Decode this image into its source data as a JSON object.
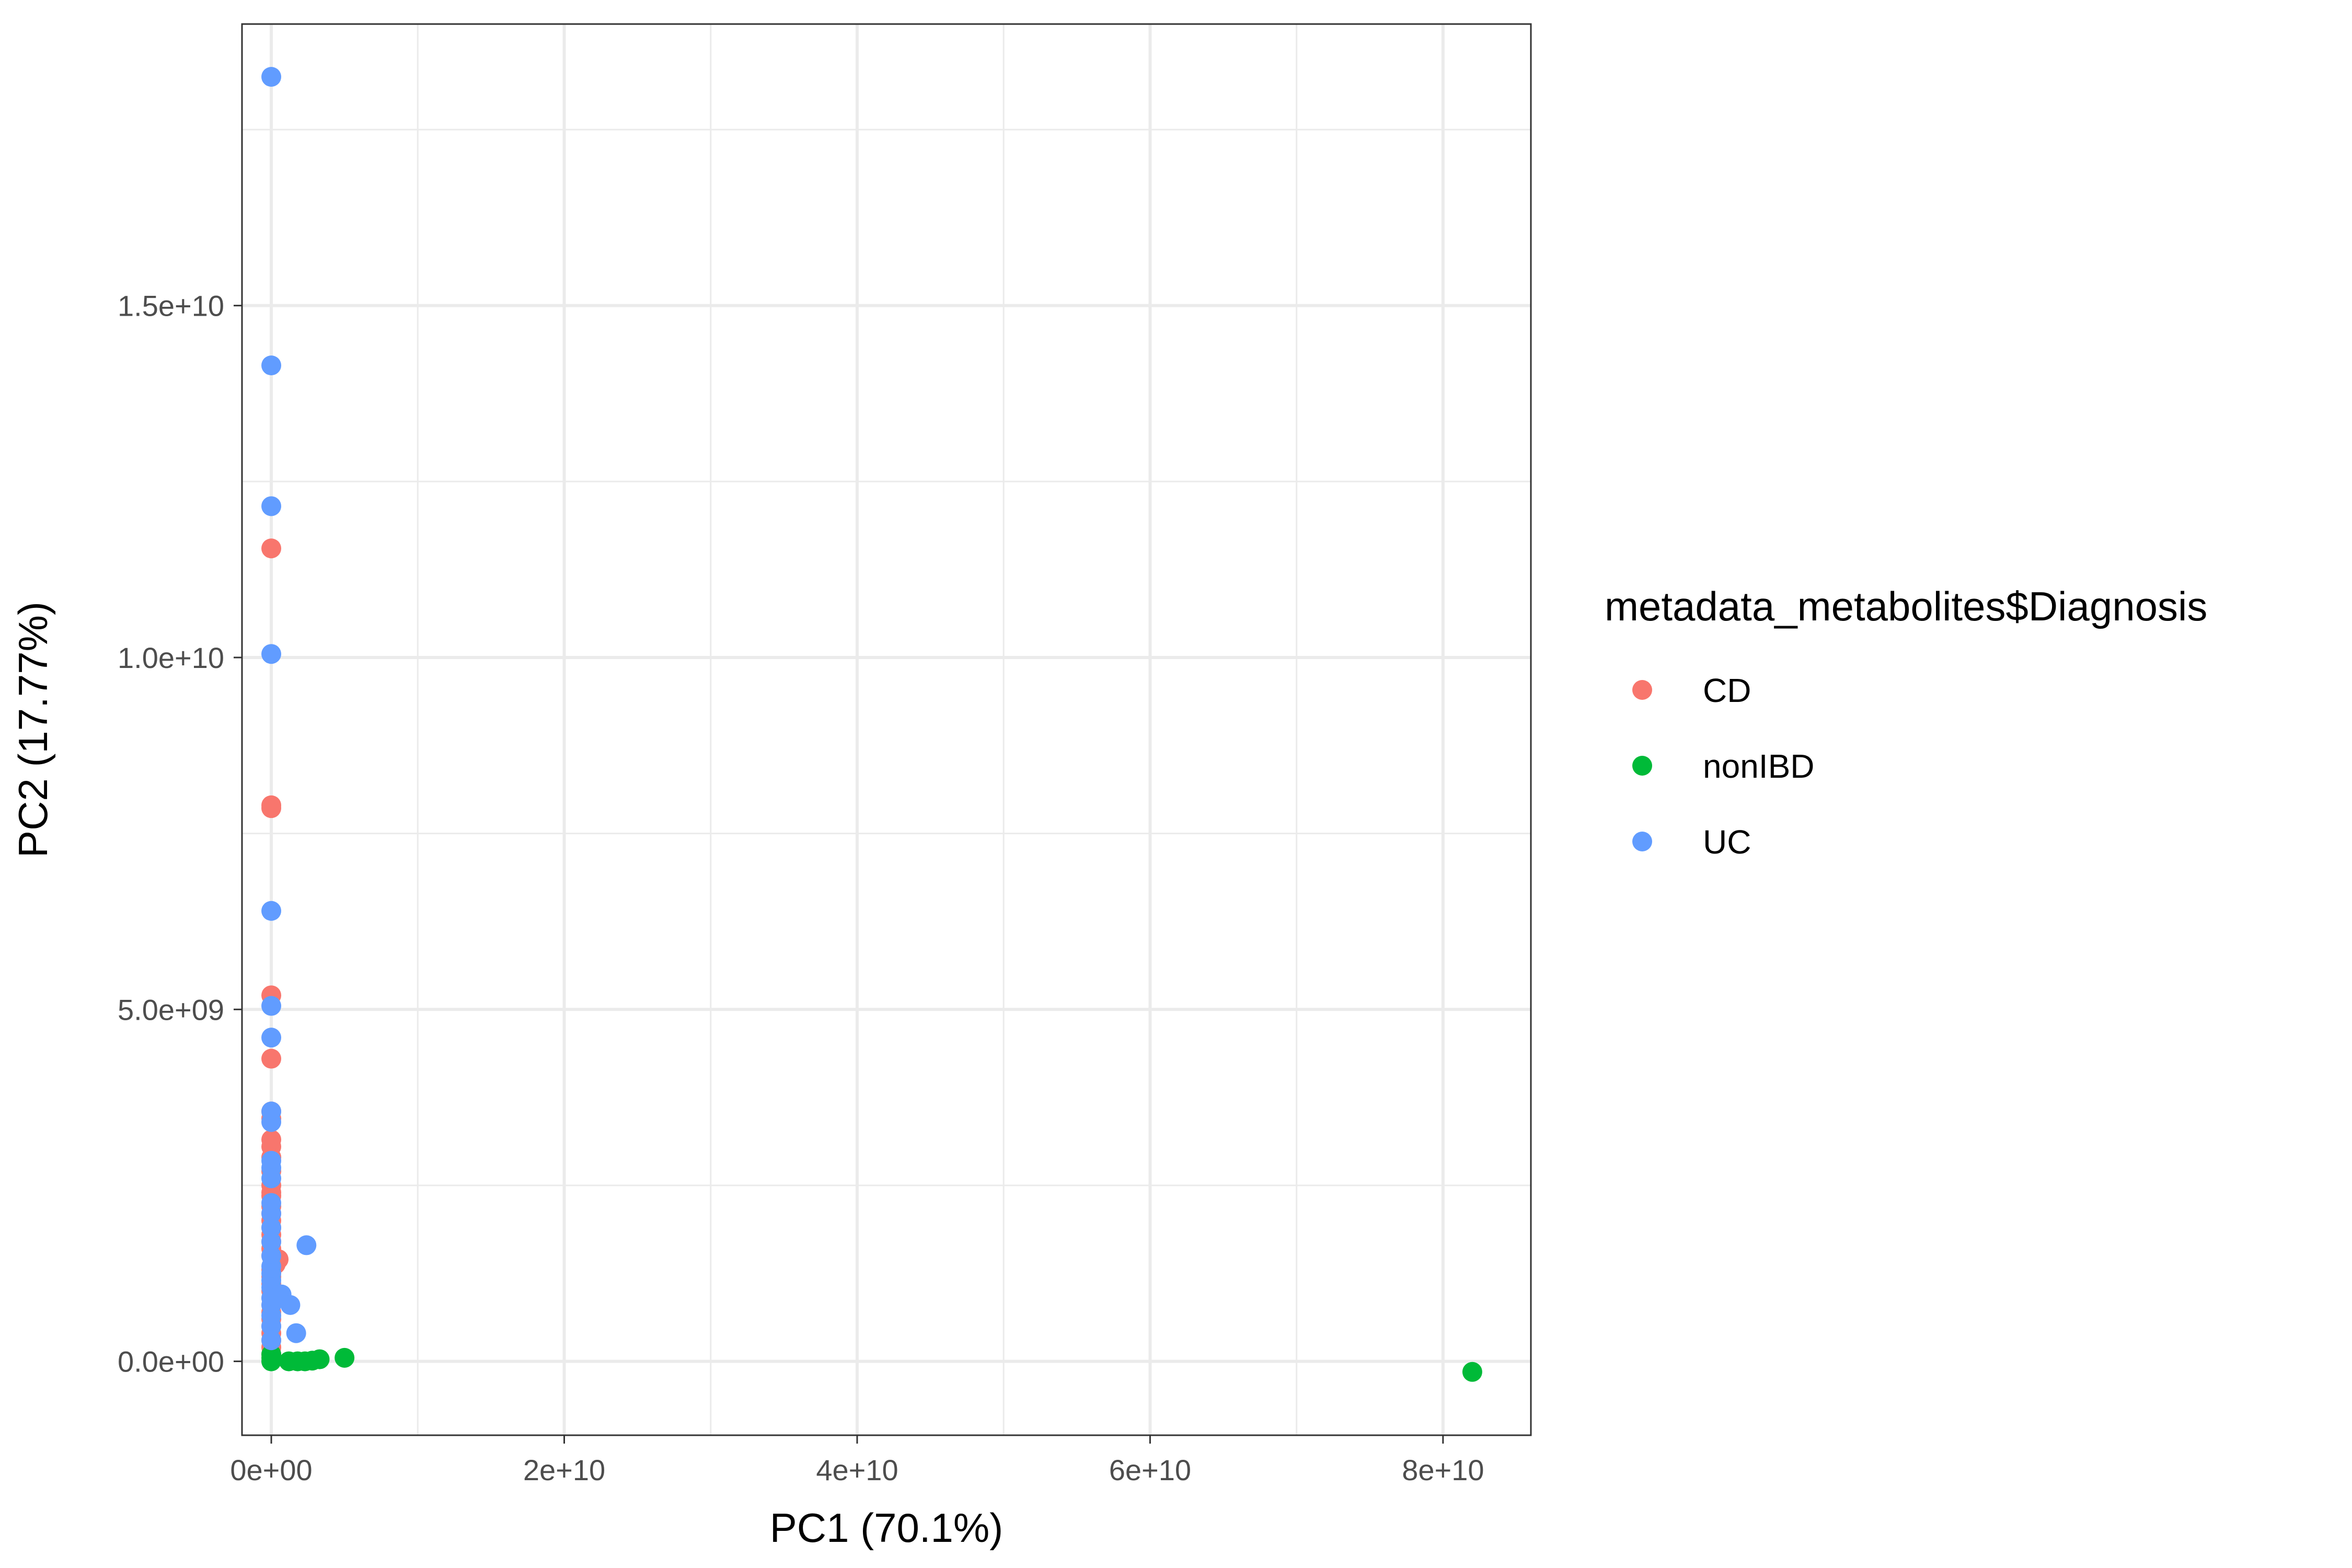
{
  "chart_data": {
    "type": "scatter",
    "title": "",
    "xlabel": "PC1 (70.1%)",
    "ylabel": "PC2 (17.77%)",
    "xlim": [
      -2000000000,
      86000000000
    ],
    "ylim": [
      -1050000000,
      19000000000
    ],
    "x_ticks": [
      {
        "value": 0,
        "label": "0e+00"
      },
      {
        "value": 20000000000,
        "label": "2e+10"
      },
      {
        "value": 40000000000,
        "label": "4e+10"
      },
      {
        "value": 60000000000,
        "label": "6e+10"
      },
      {
        "value": 80000000000,
        "label": "8e+10"
      }
    ],
    "y_ticks": [
      {
        "value": 0,
        "label": "0.0e+00"
      },
      {
        "value": 5000000000,
        "label": "5.0e+09"
      },
      {
        "value": 10000000000,
        "label": "1.0e+10"
      },
      {
        "value": 15000000000,
        "label": "1.5e+10"
      }
    ],
    "grid": true,
    "legend": {
      "title": "metadata_metabolites$Diagnosis",
      "position": "right"
    },
    "series": [
      {
        "name": "CD",
        "color": "#F8766D",
        "points": [
          [
            0,
            11550000000
          ],
          [
            0,
            7900000000
          ],
          [
            0,
            7860000000
          ],
          [
            0,
            5200000000
          ],
          [
            0,
            4300000000
          ],
          [
            0,
            3550000000
          ],
          [
            0,
            3450000000
          ],
          [
            0,
            3150000000
          ],
          [
            0,
            3050000000
          ],
          [
            0,
            2900000000
          ],
          [
            0,
            2700000000
          ],
          [
            0,
            2500000000
          ],
          [
            0,
            2400000000
          ],
          [
            0,
            2350000000
          ],
          [
            0,
            2200000000
          ],
          [
            0,
            2100000000
          ],
          [
            0,
            2000000000
          ],
          [
            0,
            1900000000
          ],
          [
            0,
            1800000000
          ],
          [
            0,
            1700000000
          ],
          [
            0,
            1600000000
          ],
          [
            0,
            1500000000
          ],
          [
            500000000,
            1450000000
          ],
          [
            300000000,
            1380000000
          ],
          [
            0,
            1300000000
          ],
          [
            0,
            1200000000
          ],
          [
            0,
            1100000000
          ],
          [
            0,
            1000000000
          ],
          [
            0,
            900000000
          ],
          [
            0,
            800000000
          ],
          [
            0,
            700000000
          ],
          [
            0,
            600000000
          ],
          [
            0,
            500000000
          ],
          [
            0,
            400000000
          ],
          [
            0,
            300000000
          ],
          [
            0,
            200000000
          ],
          [
            0,
            100000000
          ]
        ]
      },
      {
        "name": "nonIBD",
        "color": "#00BA38",
        "points": [
          [
            82000000000,
            -150000000
          ],
          [
            5000000000,
            50000000
          ],
          [
            3300000000,
            30000000
          ],
          [
            2800000000,
            10000000
          ],
          [
            2300000000,
            0
          ],
          [
            1800000000,
            0
          ],
          [
            1200000000,
            0
          ],
          [
            0,
            0
          ],
          [
            0,
            50000000
          ],
          [
            0,
            100000000
          ]
        ]
      },
      {
        "name": "UC",
        "color": "#619CFF",
        "points": [
          [
            0,
            18250000000
          ],
          [
            0,
            14150000000
          ],
          [
            0,
            12150000000
          ],
          [
            0,
            10050000000
          ],
          [
            0,
            6400000000
          ],
          [
            0,
            5050000000
          ],
          [
            0,
            4600000000
          ],
          [
            0,
            3550000000
          ],
          [
            0,
            3400000000
          ],
          [
            0,
            2850000000
          ],
          [
            0,
            2750000000
          ],
          [
            0,
            2600000000
          ],
          [
            0,
            2250000000
          ],
          [
            0,
            2100000000
          ],
          [
            0,
            1900000000
          ],
          [
            0,
            1700000000
          ],
          [
            0,
            1500000000
          ],
          [
            0,
            1350000000
          ],
          [
            0,
            1250000000
          ],
          [
            0,
            1150000000
          ],
          [
            0,
            1050000000
          ],
          [
            0,
            900000000
          ],
          [
            0,
            800000000
          ],
          [
            0,
            650000000
          ],
          [
            0,
            500000000
          ],
          [
            0,
            300000000
          ],
          [
            2400000000,
            1650000000
          ],
          [
            700000000,
            950000000
          ],
          [
            400000000,
            900000000
          ],
          [
            1300000000,
            800000000
          ],
          [
            1700000000,
            400000000
          ]
        ]
      }
    ]
  }
}
